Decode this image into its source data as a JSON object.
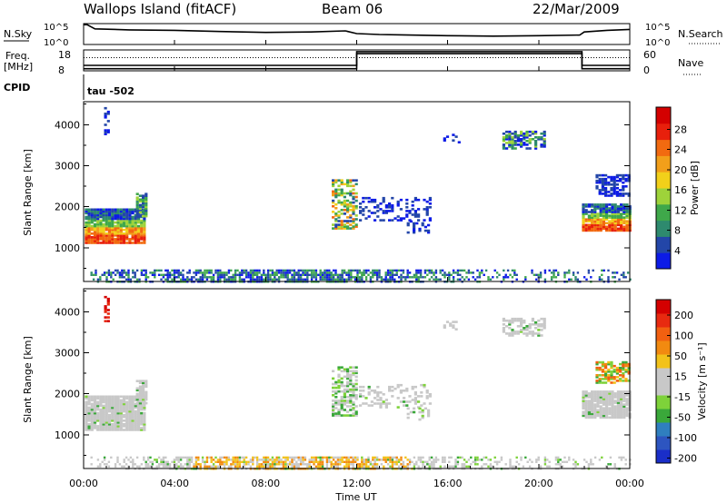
{
  "header": {
    "station": "Wallops Island (fitACF)",
    "beam": "Beam 06",
    "date": "22/Mar/2009"
  },
  "strip_labels": {
    "nsky": "N.Sky",
    "nsearch": "N.Search",
    "freq_line1": "Freq.",
    "freq_line2": "[MHz]",
    "nave": "Nave",
    "cpid": "CPID",
    "cpid_value": "tau -502"
  },
  "chart_data": [
    {
      "type": "line",
      "name": "noise-strip",
      "x": [
        0,
        0.15,
        0.5,
        2,
        4,
        6,
        8,
        10,
        11.5,
        12,
        13,
        14,
        16,
        18,
        20,
        21.8,
        22,
        23,
        24
      ],
      "y": [
        0.95,
        0.95,
        0.75,
        0.7,
        0.68,
        0.62,
        0.58,
        0.6,
        0.65,
        0.52,
        0.48,
        0.46,
        0.42,
        0.4,
        0.42,
        0.45,
        0.6,
        0.68,
        0.72
      ],
      "ylim_labels": [
        "10^0",
        "10^5"
      ],
      "right_labels": [
        "10^0",
        "10^5"
      ],
      "xlim": [
        0,
        24
      ]
    },
    {
      "type": "line",
      "name": "freq-nave-strip",
      "freq_x": [
        0,
        12,
        12,
        21.9,
        21.9,
        24
      ],
      "freq_y": [
        10.6,
        10.6,
        16.2,
        16.2,
        10.6,
        10.6
      ],
      "nave_x": [
        0,
        12,
        12,
        21.9,
        21.9,
        24
      ],
      "nave_y": [
        6,
        6,
        55,
        55,
        6,
        6
      ],
      "dotted_y": 14.3,
      "left_ticks": [
        "8",
        "18"
      ],
      "right_ticks": [
        "0",
        "60"
      ],
      "xlim": [
        0,
        24
      ]
    },
    {
      "type": "heatmap",
      "name": "power",
      "ylabel": "Slant Range [km]",
      "yticks": [
        "1000",
        "2000",
        "3000",
        "4000"
      ],
      "ylim": [
        180,
        4560
      ],
      "colorbar_label": "Power [dB]",
      "colorbar_ticks": [
        "4",
        "8",
        "12",
        "16",
        "20",
        "24",
        "28"
      ],
      "colorbar_colors": [
        "#0c1be6",
        "#2346a8",
        "#2e8a6e",
        "#3fa84a",
        "#9ed33a",
        "#f2d01a",
        "#f29f1a",
        "#f26a10",
        "#e8200c",
        "#d40000"
      ]
    },
    {
      "type": "heatmap",
      "name": "velocity",
      "ylabel": "Slant Range [km]",
      "yticks": [
        "1000",
        "2000",
        "3000",
        "4000"
      ],
      "ylim": [
        180,
        4560
      ],
      "colorbar_label": "Velocity [m s⁻¹]",
      "colorbar_ticks": [
        "200",
        "100",
        "50",
        "15",
        "-15",
        "-50",
        "-100",
        "-200"
      ],
      "colorbar_colors": [
        "#1a2ec8",
        "#2d55c0",
        "#2f7fbf",
        "#3aa83a",
        "#7ed23a",
        "#c8c8c8",
        "#c8c8c8",
        "#f2c21a",
        "#f28a10",
        "#f26010",
        "#e82a10",
        "#d40000"
      ]
    }
  ],
  "xaxis": {
    "ticks": [
      "00:00",
      "04:00",
      "08:00",
      "12:00",
      "16:00",
      "20:00",
      "00:00"
    ],
    "label": "Time UT"
  }
}
